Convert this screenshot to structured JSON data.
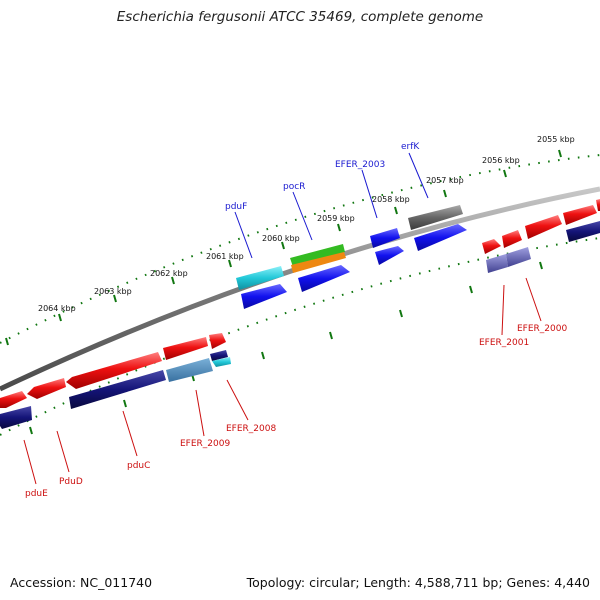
{
  "title": "Escherichia fergusonii ATCC 35469, complete genome",
  "footer": {
    "accession": "Accession: NC_011740",
    "topology": "Topology: circular; Length: 4,588,711 bp; Genes: 4,440"
  },
  "ticks": [
    "2064 kbp",
    "2063 kbp",
    "2062 kbp",
    "2061 kbp",
    "2060 kbp",
    "2059 kbp",
    "2058 kbp",
    "2057 kbp",
    "2056 kbp",
    "2055 kbp"
  ],
  "gene_labels_top": [
    "pduF",
    "pocR",
    "EFER_2003",
    "erfK"
  ],
  "gene_labels_bottom": [
    "pduE",
    "PduD",
    "pduC",
    "EFER_2009",
    "EFER_2008",
    "EFER_2001",
    "EFER_2000"
  ],
  "colors": {
    "forward_gene": "#ee1111",
    "reverse_cds": "#101078",
    "blue_cds": "#1111ee",
    "cyan_cds": "#22c8d8",
    "gray_cds": "#666666",
    "green_feature": "#33bb22",
    "orange_feature": "#ee8811",
    "backbone": "#808080",
    "tick": "#117711",
    "label_top": "#1a1ad0",
    "label_bottom": "#cc1010"
  }
}
